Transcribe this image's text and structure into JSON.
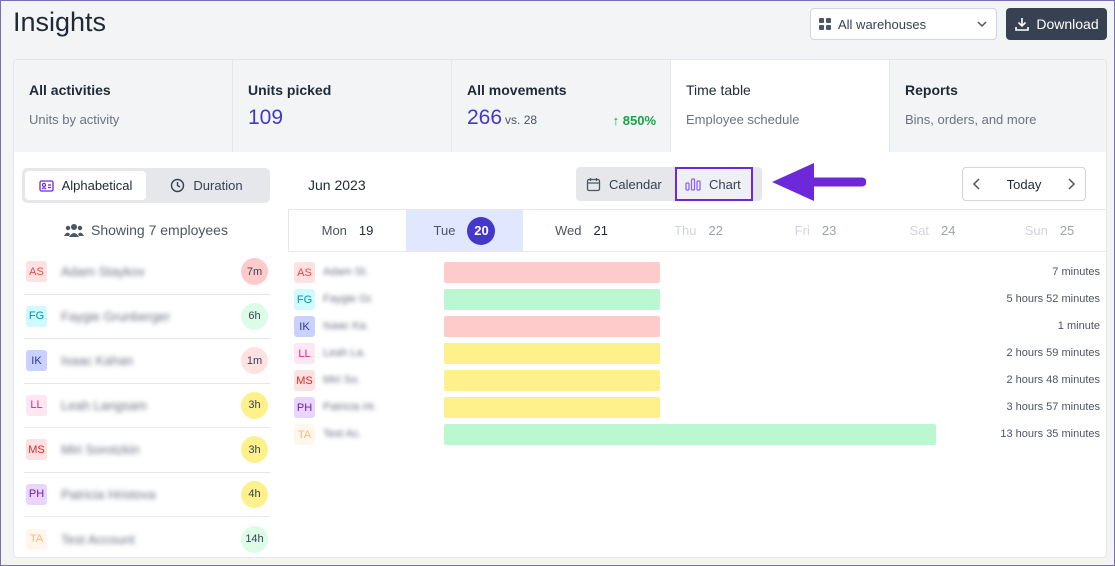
{
  "header": {
    "title": "Insights",
    "warehouse_select": "All warehouses",
    "download_label": "Download"
  },
  "tabs": [
    {
      "title": "All activities",
      "sub": "Units by activity"
    },
    {
      "title": "Units picked",
      "value": "109"
    },
    {
      "title": "All movements",
      "value": "266",
      "compare": "vs. 28",
      "growth": "850%"
    },
    {
      "title": "Time table",
      "sub": "Employee schedule"
    },
    {
      "title": "Reports",
      "sub": "Bins, orders, and more"
    }
  ],
  "sort": {
    "alphabetical": "Alphabetical",
    "duration": "Duration"
  },
  "showing_label": "Showing 7 employees",
  "calendar": {
    "month": "Jun 2023",
    "view_calendar": "Calendar",
    "view_chart": "Chart",
    "today_label": "Today",
    "days": [
      {
        "name": "Mon",
        "num": "19",
        "state": "normal"
      },
      {
        "name": "Tue",
        "num": "20",
        "state": "today"
      },
      {
        "name": "Wed",
        "num": "21",
        "state": "normal"
      },
      {
        "name": "Thu",
        "num": "22",
        "state": "weekend"
      },
      {
        "name": "Fri",
        "num": "23",
        "state": "weekend"
      },
      {
        "name": "Sat",
        "num": "24",
        "state": "weekend"
      },
      {
        "name": "Sun",
        "num": "25",
        "state": "weekend"
      }
    ]
  },
  "employees": [
    {
      "initials": "AS",
      "name": "Adam Staykov",
      "short": "Adam St.",
      "badge": "7m",
      "duration": "7 minutes",
      "minutes": 7,
      "avatar_bg": "#fee2e2",
      "avatar_fg": "#ef4444",
      "badge_bg": "#fecaca",
      "bar": "#fecaca",
      "bar_fraction": 0.44
    },
    {
      "initials": "FG",
      "name": "Faygie Grunberger",
      "short": "Faygie Gr.",
      "badge": "6h",
      "duration": "5 hours 52 minutes",
      "minutes": 352,
      "avatar_bg": "#cffafe",
      "avatar_fg": "#0891b2",
      "badge_bg": "#dcfce7",
      "bar": "#bbf7d0",
      "bar_fraction": 0.44
    },
    {
      "initials": "IK",
      "name": "Isaac Kahan",
      "short": "Isaac Ka.",
      "badge": "1m",
      "duration": "1 minute",
      "minutes": 1,
      "avatar_bg": "#c7d2fe",
      "avatar_fg": "#3730a3",
      "badge_bg": "#fee2e2",
      "bar": "#fecaca",
      "bar_fraction": 0.44
    },
    {
      "initials": "LL",
      "name": "Leah Langsam",
      "short": "Leah La.",
      "badge": "3h",
      "duration": "2 hours 59 minutes",
      "minutes": 179,
      "avatar_bg": "#fce7f3",
      "avatar_fg": "#db2777",
      "badge_bg": "#fef08a",
      "bar": "#fef08a",
      "bar_fraction": 0.44
    },
    {
      "initials": "MS",
      "name": "Miri Sorotzkin",
      "short": "Miri So.",
      "badge": "3h",
      "duration": "2 hours 48 minutes",
      "minutes": 168,
      "avatar_bg": "#fee2e2",
      "avatar_fg": "#dc2626",
      "badge_bg": "#fef08a",
      "bar": "#fef08a",
      "bar_fraction": 0.44
    },
    {
      "initials": "PH",
      "name": "Patricia Hristova",
      "short": "Patricia Hr.",
      "badge": "4h",
      "duration": "3 hours 57 minutes",
      "minutes": 237,
      "avatar_bg": "#e9d5ff",
      "avatar_fg": "#6b21a8",
      "badge_bg": "#fef08a",
      "bar": "#fef08a",
      "bar_fraction": 0.44
    },
    {
      "initials": "TA",
      "name": "Test Account",
      "short": "Test Ac.",
      "badge": "14h",
      "duration": "13 hours 35 minutes",
      "minutes": 815,
      "avatar_bg": "#fff7ed",
      "avatar_fg": "#fdba74",
      "badge_bg": "#dcfce7",
      "bar": "#bbf7d0",
      "bar_fraction": 1.0
    }
  ],
  "colors": {
    "accent": "#4338ca",
    "growth": "#16a34a",
    "highlight": "#6d28d9"
  }
}
